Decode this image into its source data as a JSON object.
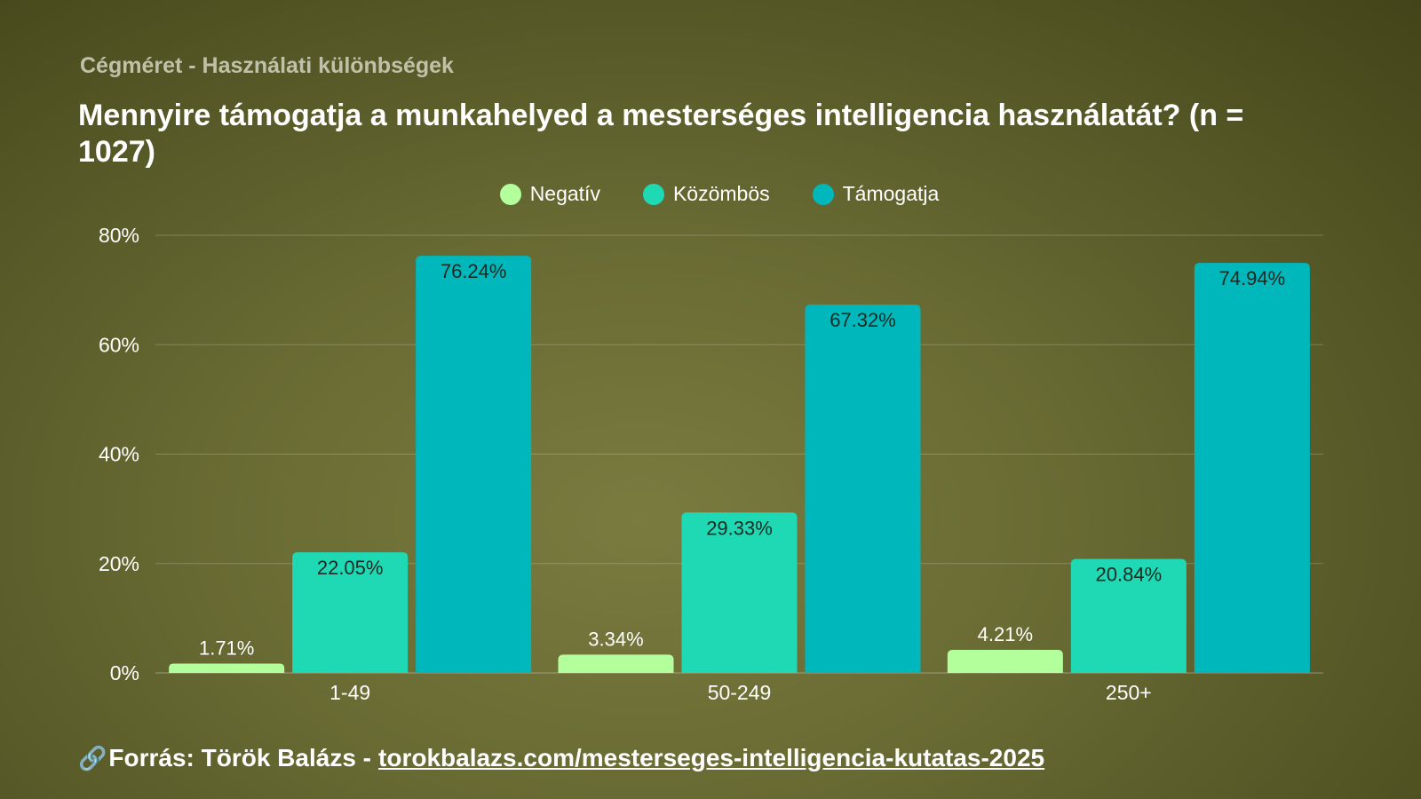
{
  "header": {
    "subtitle": "Cégméret - Használati különbségek",
    "title": "Mennyire támogatja a munkahelyed a mesterséges intelligencia használatát? (n = 1027)"
  },
  "legend": [
    {
      "label": "Negatív",
      "color": "#b3ff9c"
    },
    {
      "label": "Közömbös",
      "color": "#1ed9b4"
    },
    {
      "label": "Támogatja",
      "color": "#00b8bc"
    }
  ],
  "chart_data": {
    "type": "bar",
    "categories": [
      "1-49",
      "50-249",
      "250+"
    ],
    "series": [
      {
        "name": "Negatív",
        "values": [
          1.71,
          3.34,
          4.21
        ],
        "labels": [
          "1.71%",
          "3.34%",
          "4.21%"
        ],
        "color": "#b3ff9c"
      },
      {
        "name": "Közömbös",
        "values": [
          22.05,
          29.33,
          20.84
        ],
        "labels": [
          "22.05%",
          "29.33%",
          "20.84%"
        ],
        "color": "#1ed9b4"
      },
      {
        "name": "Támogatja",
        "values": [
          76.24,
          67.32,
          74.94
        ],
        "labels": [
          "76.24%",
          "67.32%",
          "74.94%"
        ],
        "color": "#00b8bc"
      }
    ],
    "yticks": [
      0,
      20,
      40,
      60,
      80
    ],
    "ytick_labels": [
      "0%",
      "20%",
      "40%",
      "60%",
      "80%"
    ],
    "ylim": [
      0,
      80
    ],
    "grid": true,
    "legend_position": "top-center"
  },
  "footer": {
    "icon": "link-icon",
    "prefix": "Forrás: Török Balázs -",
    "url_text": "torokbalazs.com/mesterseges-intelligencia-kutatas-2025"
  }
}
